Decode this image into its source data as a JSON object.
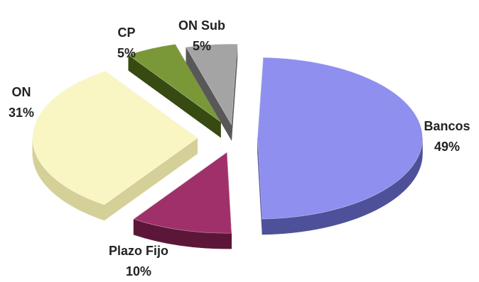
{
  "chart_data": {
    "type": "pie",
    "variant": "3d-exploded",
    "slices": [
      {
        "label": "Bancos",
        "value": 49,
        "value_label": "49%",
        "color": "#8f8ff0",
        "side_color": "#4f509a"
      },
      {
        "label": "Plazo Fijo",
        "value": 10,
        "value_label": "10%",
        "color": "#a0306a",
        "side_color": "#5c1638"
      },
      {
        "label": "ON",
        "value": 31,
        "value_label": "31%",
        "color": "#f9f6c4",
        "side_color": "#d4d098"
      },
      {
        "label": "CP",
        "value": 5,
        "value_label": "5%",
        "color": "#7a9838",
        "side_color": "#364a12"
      },
      {
        "label": "ON Sub",
        "value": 5,
        "value_label": "5%",
        "color": "#a4a4a4",
        "side_color": "#585858"
      }
    ],
    "legend": "none"
  }
}
